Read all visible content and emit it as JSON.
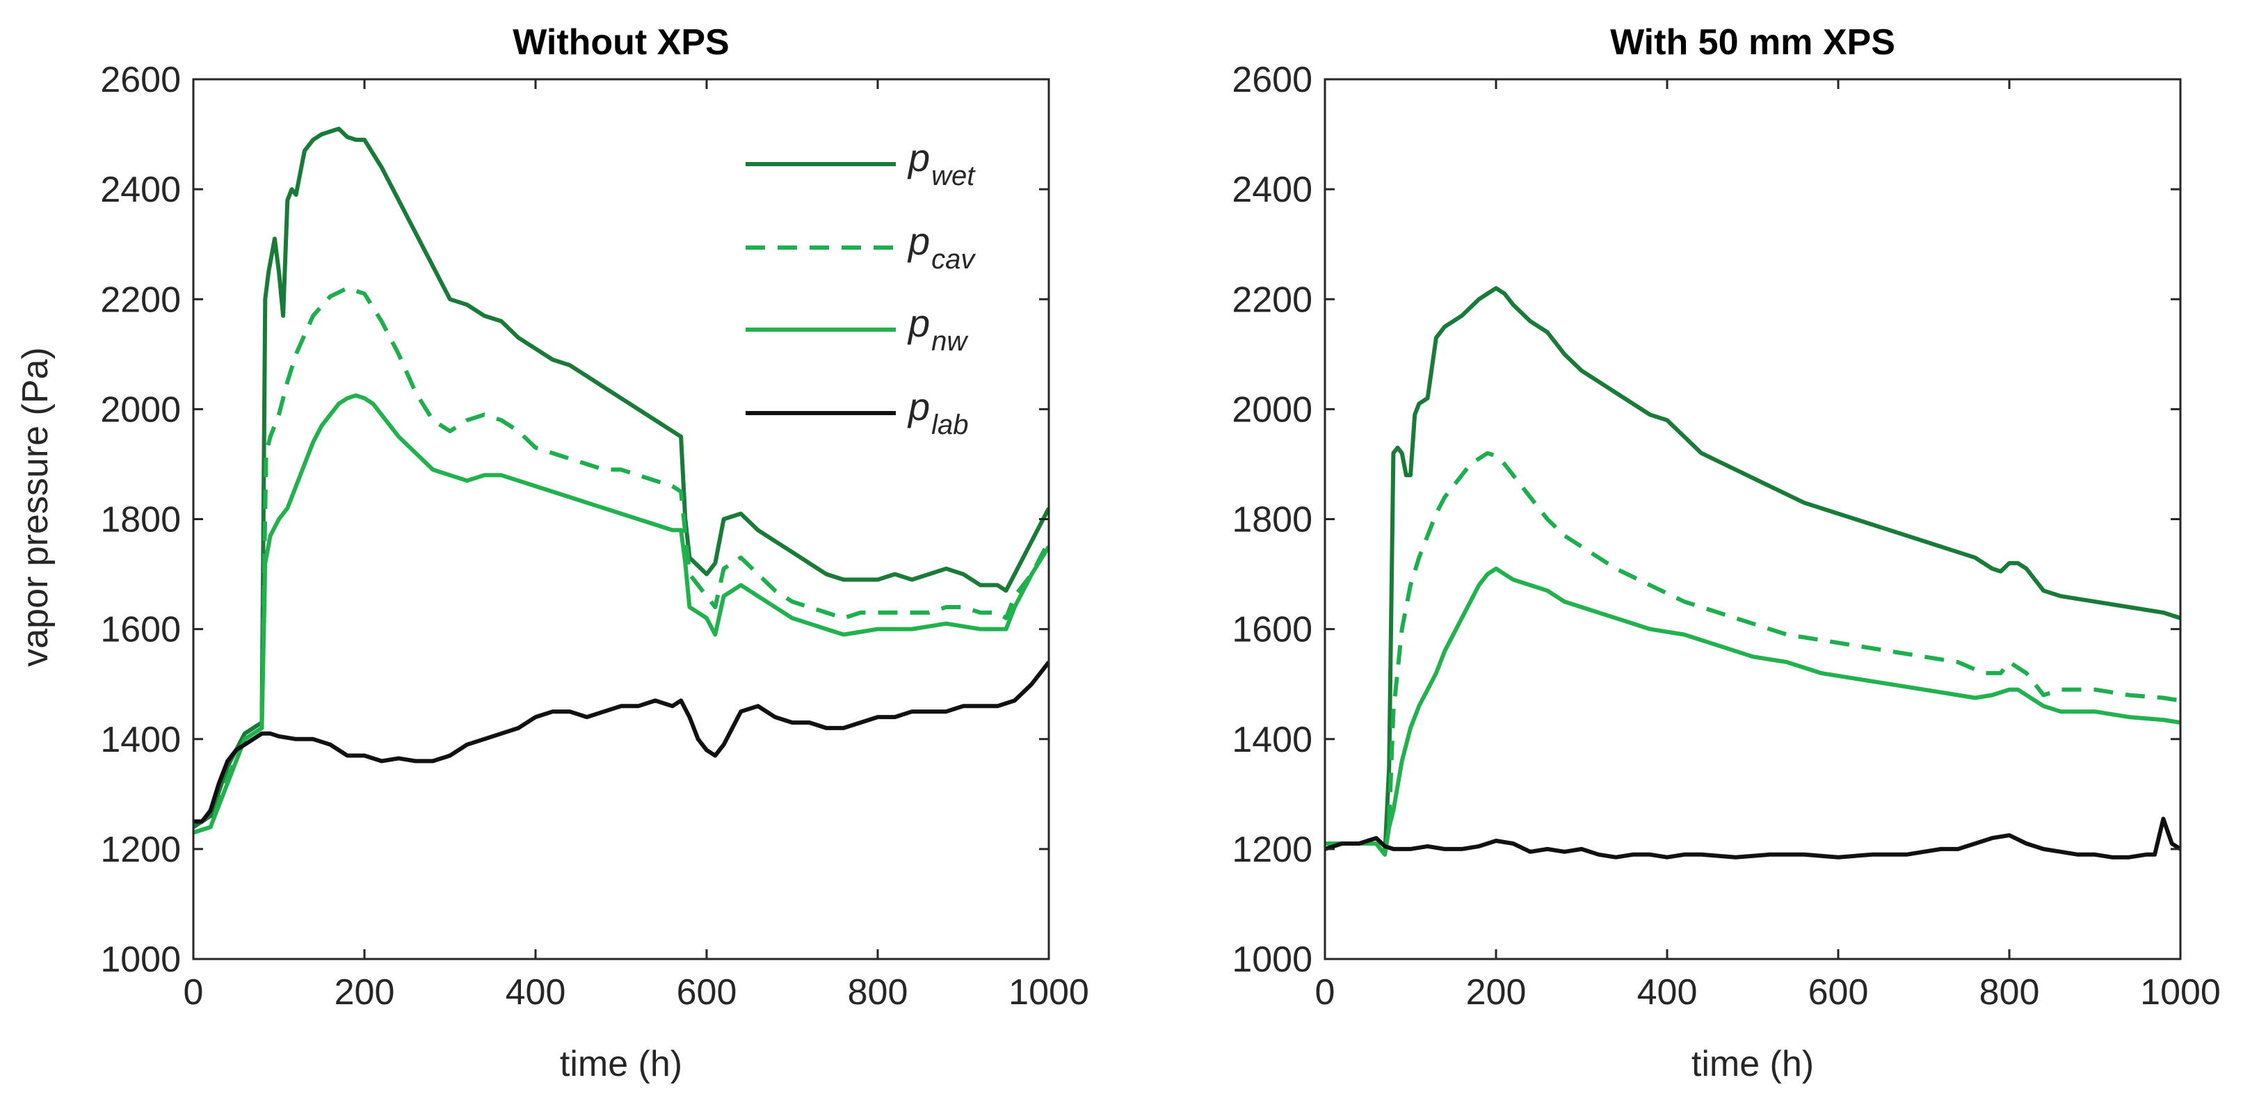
{
  "chart_data": [
    {
      "type": "line",
      "title": "Without XPS",
      "xlabel": "time (h)",
      "ylabel": "vapor pressure (Pa)",
      "xlim": [
        0,
        1000
      ],
      "ylim": [
        1000,
        2600
      ],
      "xticks": [
        "0",
        "200",
        "400",
        "600",
        "800",
        "1000"
      ],
      "yticks": [
        "1000",
        "1200",
        "1400",
        "1600",
        "1800",
        "2000",
        "2200",
        "2400",
        "2600"
      ],
      "legend": {
        "placement": "top-right",
        "entries": [
          {
            "symbol": "p",
            "subscript": "wet"
          },
          {
            "symbol": "p",
            "subscript": "cav"
          },
          {
            "symbol": "p",
            "subscript": "nw"
          },
          {
            "symbol": "p",
            "subscript": "lab"
          }
        ]
      },
      "series": [
        {
          "name": "p_wet",
          "color": "#1a7a37",
          "dash": "solid",
          "x": [
            0,
            20,
            40,
            60,
            80,
            84,
            88,
            95,
            100,
            105,
            110,
            115,
            120,
            130,
            140,
            150,
            160,
            170,
            180,
            190,
            200,
            220,
            240,
            260,
            280,
            300,
            320,
            340,
            360,
            380,
            400,
            420,
            440,
            460,
            480,
            500,
            520,
            540,
            560,
            570,
            575,
            580,
            600,
            610,
            620,
            640,
            660,
            680,
            700,
            720,
            740,
            760,
            780,
            800,
            820,
            840,
            860,
            880,
            900,
            920,
            940,
            950,
            960,
            980,
            1000
          ],
          "y": [
            1240,
            1260,
            1350,
            1410,
            1430,
            2200,
            2250,
            2310,
            2250,
            2170,
            2380,
            2400,
            2390,
            2470,
            2490,
            2500,
            2505,
            2510,
            2495,
            2490,
            2490,
            2440,
            2380,
            2320,
            2260,
            2200,
            2190,
            2170,
            2160,
            2130,
            2110,
            2090,
            2080,
            2060,
            2040,
            2020,
            2000,
            1980,
            1960,
            1950,
            1800,
            1730,
            1700,
            1720,
            1800,
            1810,
            1780,
            1760,
            1740,
            1720,
            1700,
            1690,
            1690,
            1690,
            1700,
            1690,
            1700,
            1710,
            1700,
            1680,
            1680,
            1670,
            1700,
            1760,
            1820
          ]
        },
        {
          "name": "p_cav",
          "color": "#1eae4e",
          "dash": "dashed",
          "x": [
            0,
            20,
            40,
            60,
            80,
            85,
            90,
            100,
            110,
            120,
            140,
            160,
            180,
            200,
            220,
            240,
            260,
            280,
            300,
            320,
            340,
            360,
            380,
            400,
            420,
            440,
            460,
            480,
            500,
            520,
            540,
            560,
            570,
            580,
            600,
            610,
            620,
            640,
            660,
            680,
            700,
            720,
            740,
            760,
            780,
            800,
            820,
            840,
            860,
            880,
            900,
            920,
            940,
            950,
            960,
            980,
            1000
          ],
          "y": [
            1230,
            1240,
            1330,
            1400,
            1420,
            1920,
            1950,
            1990,
            2050,
            2100,
            2170,
            2205,
            2220,
            2210,
            2160,
            2100,
            2030,
            1980,
            1960,
            1980,
            1990,
            1980,
            1960,
            1930,
            1920,
            1910,
            1900,
            1890,
            1890,
            1880,
            1870,
            1860,
            1850,
            1700,
            1660,
            1640,
            1710,
            1730,
            1700,
            1670,
            1650,
            1640,
            1630,
            1620,
            1630,
            1630,
            1630,
            1630,
            1630,
            1640,
            1640,
            1630,
            1630,
            1620,
            1660,
            1700,
            1760
          ]
        },
        {
          "name": "p_nw",
          "color": "#23b14d",
          "dash": "solid",
          "x": [
            0,
            20,
            40,
            60,
            80,
            84,
            90,
            100,
            110,
            120,
            130,
            140,
            150,
            160,
            170,
            180,
            190,
            200,
            210,
            220,
            240,
            260,
            280,
            300,
            320,
            340,
            360,
            380,
            400,
            420,
            440,
            460,
            480,
            500,
            520,
            540,
            560,
            570,
            575,
            580,
            600,
            610,
            620,
            640,
            660,
            680,
            700,
            720,
            740,
            760,
            780,
            800,
            820,
            840,
            860,
            880,
            900,
            920,
            940,
            950,
            960,
            980,
            1000
          ],
          "y": [
            1230,
            1240,
            1320,
            1400,
            1420,
            1720,
            1770,
            1800,
            1820,
            1860,
            1900,
            1940,
            1970,
            1990,
            2010,
            2020,
            2025,
            2020,
            2010,
            1990,
            1950,
            1920,
            1890,
            1880,
            1870,
            1880,
            1880,
            1870,
            1860,
            1850,
            1840,
            1830,
            1820,
            1810,
            1800,
            1790,
            1780,
            1780,
            1720,
            1640,
            1620,
            1590,
            1660,
            1680,
            1660,
            1640,
            1620,
            1610,
            1600,
            1590,
            1595,
            1600,
            1600,
            1600,
            1605,
            1610,
            1605,
            1600,
            1600,
            1600,
            1640,
            1700,
            1750
          ]
        },
        {
          "name": "p_lab",
          "color": "#111111",
          "dash": "solid",
          "x": [
            0,
            10,
            20,
            30,
            40,
            50,
            60,
            70,
            80,
            90,
            100,
            120,
            140,
            160,
            180,
            200,
            220,
            240,
            260,
            280,
            300,
            320,
            340,
            360,
            380,
            400,
            420,
            440,
            460,
            480,
            500,
            520,
            540,
            560,
            570,
            580,
            590,
            600,
            610,
            620,
            640,
            660,
            680,
            700,
            720,
            740,
            760,
            780,
            800,
            820,
            840,
            860,
            880,
            900,
            920,
            940,
            960,
            980,
            1000
          ],
          "y": [
            1250,
            1250,
            1270,
            1320,
            1360,
            1380,
            1390,
            1400,
            1410,
            1410,
            1405,
            1400,
            1400,
            1390,
            1370,
            1370,
            1360,
            1365,
            1360,
            1360,
            1370,
            1390,
            1400,
            1410,
            1420,
            1440,
            1450,
            1450,
            1440,
            1450,
            1460,
            1460,
            1470,
            1460,
            1470,
            1440,
            1400,
            1380,
            1370,
            1390,
            1450,
            1460,
            1440,
            1430,
            1430,
            1420,
            1420,
            1430,
            1440,
            1440,
            1450,
            1450,
            1450,
            1460,
            1460,
            1460,
            1470,
            1500,
            1540
          ]
        }
      ]
    },
    {
      "type": "line",
      "title": "With 50 mm XPS",
      "xlabel": "time (h)",
      "ylabel": "",
      "xlim": [
        0,
        1000
      ],
      "ylim": [
        1000,
        2600
      ],
      "xticks": [
        "0",
        "200",
        "400",
        "600",
        "800",
        "1000"
      ],
      "yticks": [
        "1000",
        "1200",
        "1400",
        "1600",
        "1800",
        "2000",
        "2200",
        "2400",
        "2600"
      ],
      "series": [
        {
          "name": "p_wet",
          "color": "#1a7a37",
          "dash": "solid",
          "x": [
            0,
            20,
            40,
            60,
            70,
            75,
            80,
            85,
            90,
            95,
            100,
            105,
            110,
            120,
            130,
            140,
            160,
            180,
            190,
            200,
            210,
            220,
            240,
            260,
            280,
            300,
            340,
            380,
            400,
            420,
            440,
            480,
            520,
            560,
            600,
            640,
            680,
            720,
            760,
            780,
            790,
            800,
            810,
            820,
            840,
            860,
            900,
            940,
            980,
            1000
          ],
          "y": [
            1210,
            1210,
            1210,
            1210,
            1190,
            1350,
            1920,
            1930,
            1920,
            1880,
            1880,
            1990,
            2010,
            2020,
            2130,
            2150,
            2170,
            2200,
            2210,
            2220,
            2210,
            2190,
            2160,
            2140,
            2100,
            2070,
            2030,
            1990,
            1980,
            1950,
            1920,
            1890,
            1860,
            1830,
            1810,
            1790,
            1770,
            1750,
            1730,
            1710,
            1705,
            1720,
            1720,
            1710,
            1670,
            1660,
            1650,
            1640,
            1630,
            1620
          ]
        },
        {
          "name": "p_cav",
          "color": "#1eae4e",
          "dash": "dashed",
          "x": [
            0,
            20,
            40,
            60,
            70,
            75,
            80,
            90,
            100,
            110,
            120,
            130,
            140,
            150,
            160,
            170,
            180,
            190,
            200,
            210,
            220,
            240,
            260,
            280,
            300,
            340,
            380,
            420,
            460,
            500,
            540,
            580,
            620,
            660,
            700,
            740,
            770,
            790,
            800,
            810,
            820,
            840,
            860,
            900,
            940,
            980,
            1000
          ],
          "y": [
            1210,
            1210,
            1210,
            1210,
            1190,
            1250,
            1450,
            1600,
            1680,
            1730,
            1770,
            1810,
            1840,
            1860,
            1880,
            1900,
            1910,
            1920,
            1915,
            1900,
            1880,
            1840,
            1800,
            1770,
            1750,
            1710,
            1680,
            1650,
            1630,
            1610,
            1590,
            1580,
            1570,
            1560,
            1550,
            1540,
            1520,
            1520,
            1540,
            1530,
            1520,
            1480,
            1490,
            1490,
            1480,
            1475,
            1470
          ]
        },
        {
          "name": "p_nw",
          "color": "#23b14d",
          "dash": "solid",
          "x": [
            0,
            20,
            40,
            60,
            70,
            75,
            80,
            90,
            100,
            110,
            120,
            130,
            140,
            150,
            160,
            170,
            180,
            190,
            200,
            210,
            220,
            240,
            260,
            280,
            300,
            340,
            380,
            420,
            460,
            500,
            540,
            580,
            620,
            660,
            700,
            740,
            760,
            780,
            800,
            810,
            820,
            840,
            860,
            900,
            940,
            980,
            1000
          ],
          "y": [
            1210,
            1210,
            1210,
            1210,
            1190,
            1240,
            1270,
            1360,
            1420,
            1460,
            1490,
            1520,
            1560,
            1590,
            1620,
            1650,
            1680,
            1700,
            1710,
            1700,
            1690,
            1680,
            1670,
            1650,
            1640,
            1620,
            1600,
            1590,
            1570,
            1550,
            1540,
            1520,
            1510,
            1500,
            1490,
            1480,
            1475,
            1480,
            1490,
            1490,
            1480,
            1460,
            1450,
            1450,
            1440,
            1435,
            1430
          ]
        },
        {
          "name": "p_lab",
          "color": "#111111",
          "dash": "solid",
          "x": [
            0,
            20,
            40,
            50,
            60,
            70,
            80,
            100,
            120,
            140,
            160,
            180,
            200,
            220,
            240,
            260,
            280,
            300,
            320,
            340,
            360,
            380,
            400,
            420,
            440,
            480,
            520,
            560,
            600,
            640,
            680,
            700,
            720,
            740,
            760,
            780,
            800,
            820,
            840,
            860,
            880,
            900,
            920,
            940,
            960,
            970,
            980,
            990,
            1000
          ],
          "y": [
            1200,
            1210,
            1210,
            1215,
            1220,
            1205,
            1200,
            1200,
            1205,
            1200,
            1200,
            1205,
            1215,
            1210,
            1195,
            1200,
            1195,
            1200,
            1190,
            1185,
            1190,
            1190,
            1185,
            1190,
            1190,
            1185,
            1190,
            1190,
            1185,
            1190,
            1190,
            1195,
            1200,
            1200,
            1210,
            1220,
            1225,
            1210,
            1200,
            1195,
            1190,
            1190,
            1185,
            1185,
            1190,
            1190,
            1255,
            1210,
            1200
          ]
        }
      ]
    }
  ]
}
